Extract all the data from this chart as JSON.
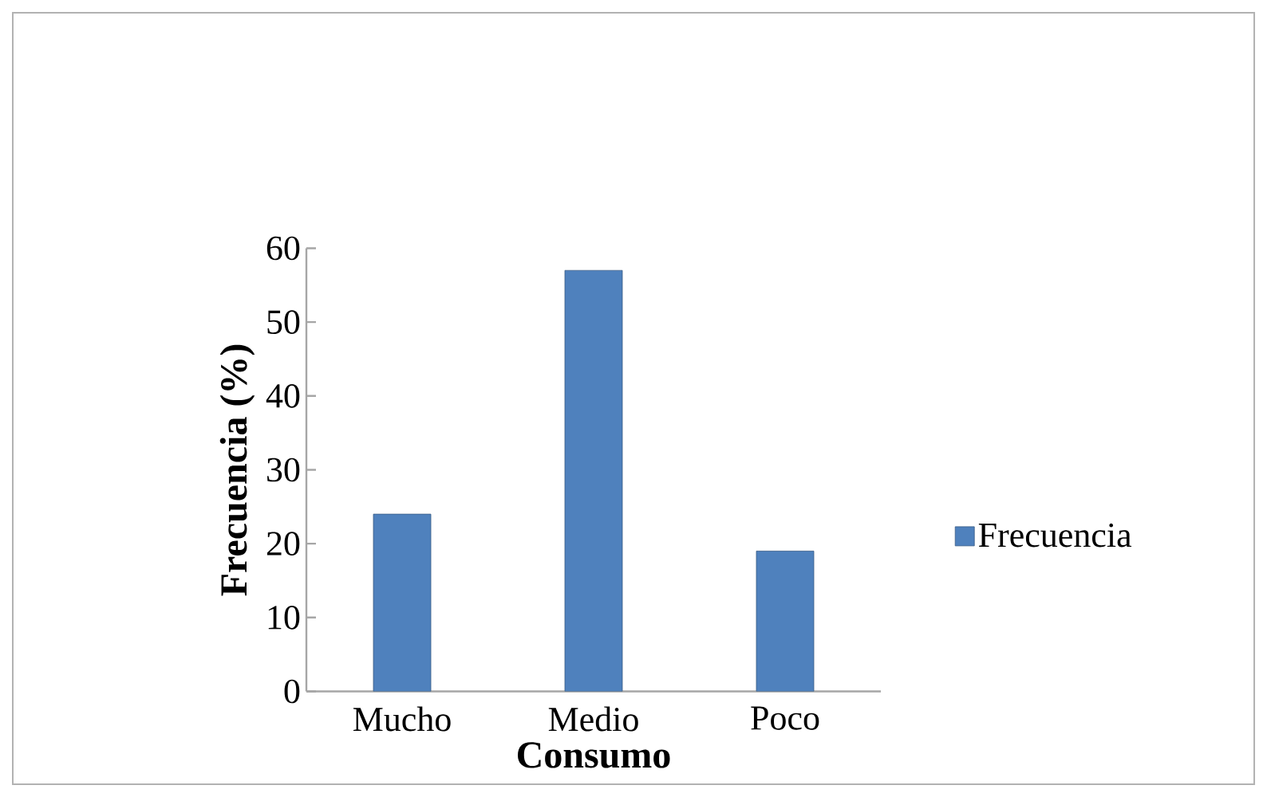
{
  "chart_data": {
    "type": "bar",
    "xlabel": "Consumo",
    "ylabel": "Frecuencia (%)",
    "categories": [
      "Mucho",
      "Medio",
      "Poco"
    ],
    "series": [
      {
        "name": "Frecuencia",
        "color": "#4f81bd",
        "values": [
          24,
          57,
          19
        ]
      }
    ],
    "ylim": [
      0,
      60
    ],
    "yticks": [
      0,
      10,
      20,
      30,
      40,
      50,
      60
    ],
    "legend": "right"
  }
}
